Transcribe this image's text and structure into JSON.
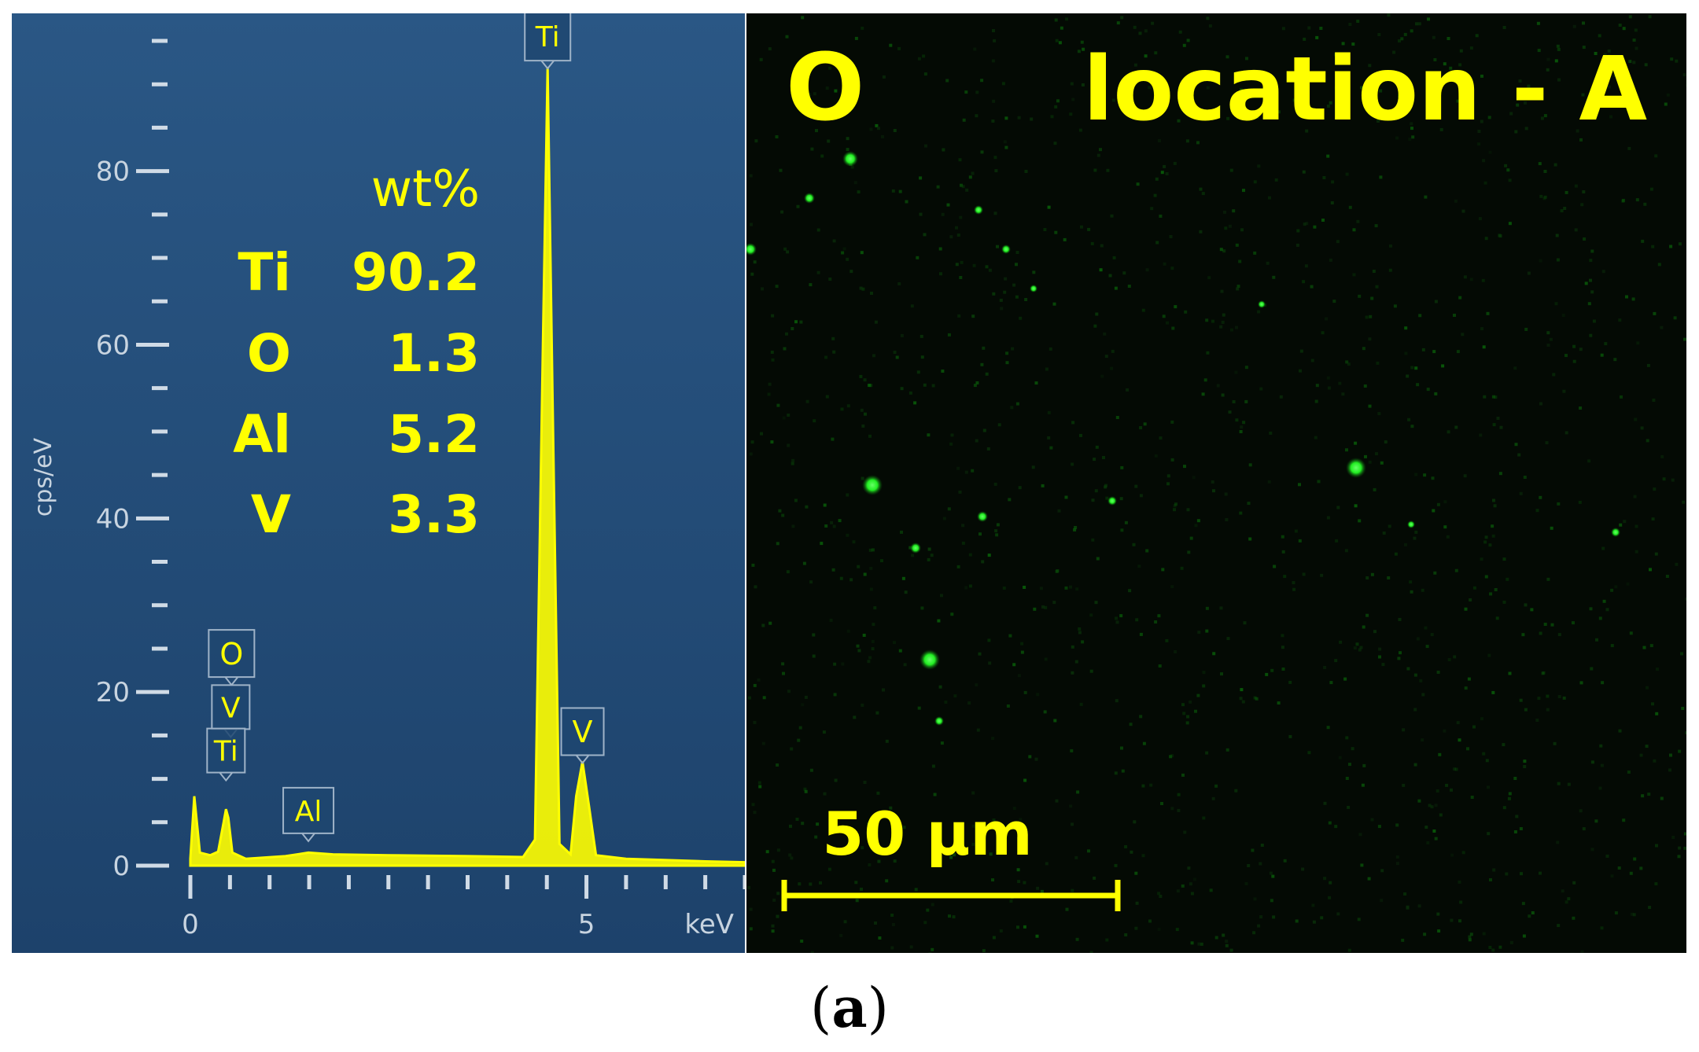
{
  "chart_data": {
    "type": "line",
    "title": "",
    "ylabel": "cps/eV",
    "xlabel": "keV",
    "xlim": [
      0,
      7
    ],
    "ylim": [
      0,
      95
    ],
    "x_ticks": [
      0,
      5
    ],
    "y_ticks": [
      0,
      20,
      40,
      60,
      80
    ],
    "series": [
      {
        "points": [
          [
            0.0,
            0.8
          ],
          [
            0.05,
            8.0
          ],
          [
            0.12,
            1.5
          ],
          [
            0.25,
            1.2
          ],
          [
            0.35,
            1.6
          ],
          [
            0.42,
            5.0
          ],
          [
            0.45,
            6.5
          ],
          [
            0.48,
            5.5
          ],
          [
            0.53,
            1.5
          ],
          [
            0.7,
            0.8
          ],
          [
            1.2,
            1.1
          ],
          [
            1.49,
            1.5
          ],
          [
            1.8,
            1.3
          ],
          [
            2.5,
            1.2
          ],
          [
            3.5,
            1.1
          ],
          [
            4.2,
            1.0
          ],
          [
            4.35,
            3.0
          ],
          [
            4.45,
            60.0
          ],
          [
            4.51,
            92.0
          ],
          [
            4.57,
            55.0
          ],
          [
            4.66,
            2.5
          ],
          [
            4.8,
            1.3
          ],
          [
            4.87,
            8.0
          ],
          [
            4.95,
            12.0
          ],
          [
            5.03,
            7.0
          ],
          [
            5.12,
            1.2
          ],
          [
            5.5,
            0.8
          ],
          [
            6.5,
            0.5
          ],
          [
            7.0,
            0.4
          ]
        ]
      }
    ],
    "peak_labels": [
      {
        "text": "Ti",
        "x": 4.51,
        "y": 92
      },
      {
        "text": "V",
        "x": 4.95,
        "y": 12
      },
      {
        "text": "O",
        "x": 0.52,
        "y": 21
      },
      {
        "text": "V",
        "x": 0.51,
        "y": 15
      },
      {
        "text": "Ti",
        "x": 0.45,
        "y": 10
      },
      {
        "text": "Al",
        "x": 1.49,
        "y": 3
      }
    ],
    "annotation_table": {
      "header": "wt%",
      "rows": [
        {
          "element": "Ti",
          "value": "90.2"
        },
        {
          "element": "O",
          "value": "1.3"
        },
        {
          "element": "Al",
          "value": "5.2"
        },
        {
          "element": "V",
          "value": "3.3"
        }
      ]
    }
  },
  "map": {
    "element": "O",
    "location": "location - A",
    "scale_bar_label": "50 μm"
  },
  "caption": {
    "open": "(",
    "letter": "a",
    "close": ")"
  },
  "colors": {
    "panel_background": "#244e7a",
    "trace": "#ffff00",
    "axis": "#d0dbe6",
    "map_background": "#040a04",
    "map_dot": "#22ff22",
    "label": "#ffff00"
  }
}
